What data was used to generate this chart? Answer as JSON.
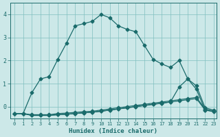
{
  "xlabel": "Humidex (Indice chaleur)",
  "bg_color": "#cce8e8",
  "grid_color": "#7fbfbf",
  "line_color": "#1a6b6b",
  "xlim": [
    -0.5,
    23.3
  ],
  "ylim": [
    -0.5,
    4.5
  ],
  "xticks": [
    0,
    1,
    2,
    3,
    4,
    5,
    6,
    7,
    8,
    9,
    10,
    11,
    12,
    13,
    14,
    15,
    16,
    17,
    18,
    19,
    20,
    21,
    22,
    23
  ],
  "yticks": [
    0,
    1,
    2,
    3,
    4
  ],
  "line1_x": [
    0,
    1,
    2,
    3,
    4,
    5,
    6,
    7,
    8,
    9,
    10,
    11,
    12,
    13,
    14,
    15,
    16,
    17,
    18,
    19,
    20,
    21,
    22,
    23
  ],
  "line1_y": [
    -0.3,
    -0.3,
    0.6,
    1.2,
    1.3,
    2.05,
    2.75,
    3.5,
    3.6,
    3.7,
    4.0,
    3.85,
    3.5,
    3.35,
    3.25,
    2.65,
    2.05,
    1.85,
    1.7,
    2.0,
    1.2,
    0.75,
    -0.15,
    -0.2
  ],
  "line2_x": [
    0,
    1,
    2,
    3,
    4,
    5,
    6,
    7,
    8,
    9,
    10,
    11,
    12,
    13,
    14,
    15,
    16,
    17,
    18,
    19,
    20,
    21,
    22,
    23
  ],
  "line2_y": [
    -0.3,
    -0.3,
    -0.35,
    -0.35,
    -0.35,
    -0.3,
    -0.28,
    -0.25,
    -0.22,
    -0.2,
    -0.15,
    -0.1,
    -0.05,
    0.0,
    0.05,
    0.1,
    0.15,
    0.2,
    0.25,
    0.3,
    0.35,
    0.4,
    -0.1,
    -0.2
  ],
  "line3_x": [
    0,
    1,
    2,
    3,
    4,
    5,
    6,
    7,
    8,
    9,
    10,
    11,
    12,
    13,
    14,
    15,
    16,
    17,
    18,
    19,
    20,
    21,
    22,
    23
  ],
  "line3_y": [
    -0.3,
    -0.3,
    -0.38,
    -0.38,
    -0.38,
    -0.35,
    -0.33,
    -0.3,
    -0.27,
    -0.24,
    -0.2,
    -0.15,
    -0.1,
    -0.05,
    0.0,
    0.05,
    0.1,
    0.15,
    0.2,
    0.25,
    0.3,
    0.35,
    -0.15,
    -0.22
  ],
  "line4_x": [
    0,
    1,
    2,
    3,
    4,
    5,
    6,
    7,
    8,
    9,
    10,
    11,
    12,
    13,
    14,
    15,
    16,
    17,
    18,
    19,
    20,
    21,
    22,
    23
  ],
  "line4_y": [
    -0.3,
    -0.3,
    -0.38,
    -0.38,
    -0.38,
    -0.35,
    -0.33,
    -0.3,
    -0.27,
    -0.24,
    -0.2,
    -0.15,
    -0.1,
    -0.05,
    0.0,
    0.05,
    0.1,
    0.15,
    0.2,
    0.85,
    1.2,
    0.9,
    -0.05,
    -0.15
  ]
}
